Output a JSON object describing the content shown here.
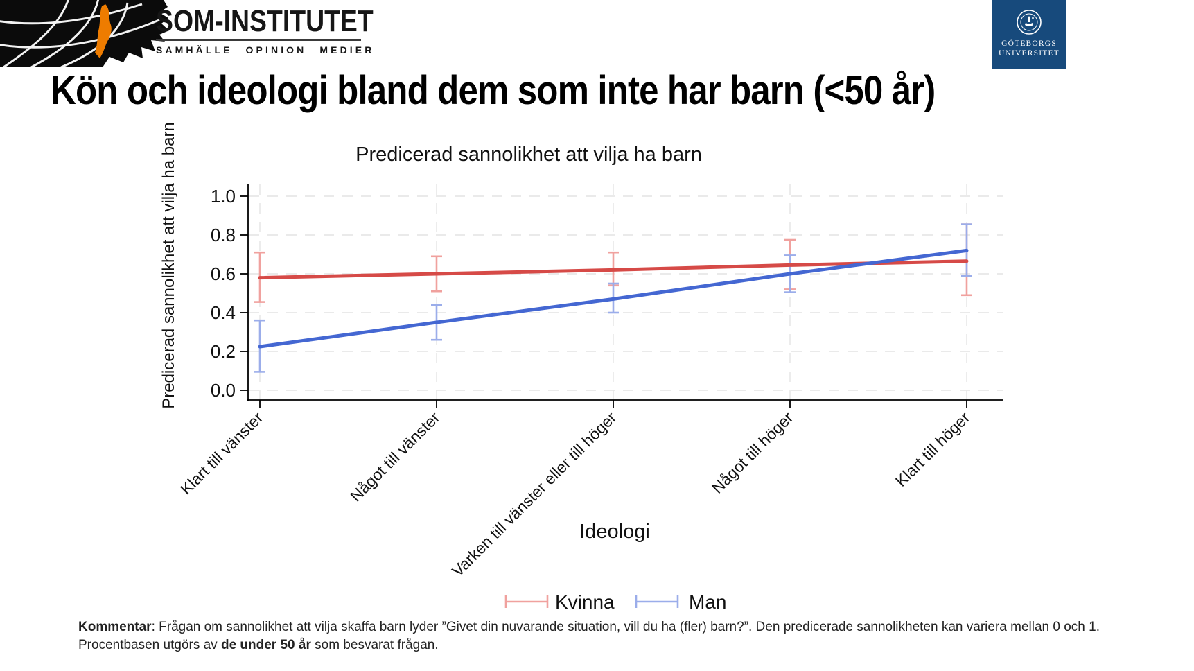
{
  "header": {
    "som_logo": {
      "title": "SOM-INSTITUTET",
      "subtitle": "SAMHÄLLE OPINION MEDIER"
    },
    "gu_logo": {
      "line1": "GÖTEBORGS",
      "line2": "UNIVERSITET",
      "bg_color": "#174a7c"
    }
  },
  "title": "Kön och ideologi bland dem som inte har barn (<50 år)",
  "chart_data": {
    "type": "line",
    "title": "Predicerad sannolikhet att vilja ha barn",
    "xlabel": "Ideologi",
    "ylabel": "Predicerad sannolikhet att vilja ha barn",
    "categories": [
      "Klart till vänster",
      "Något till vänster",
      "Varken till vänster eller till höger",
      "Något till höger",
      "Klart till höger"
    ],
    "x_label_rotation": 45,
    "yticks": [
      0,
      0.2,
      0.4,
      0.6,
      0.8,
      1
    ],
    "ylim": [
      0,
      1.05
    ],
    "grid": "dashed horizontal and vertical gridlines",
    "legend_position": "bottom",
    "series": [
      {
        "name": "Kvinna",
        "color": "#d64a47",
        "ci_color": "#f0a19e",
        "values": [
          0.58,
          0.6,
          0.62,
          0.645,
          0.665
        ],
        "ci_low": [
          0.455,
          0.51,
          0.54,
          0.52,
          0.49
        ],
        "ci_high": [
          0.71,
          0.69,
          0.71,
          0.775,
          0.855
        ]
      },
      {
        "name": "Man",
        "color": "#4467d2",
        "ci_color": "#9badea",
        "values": [
          0.225,
          0.35,
          0.47,
          0.6,
          0.72
        ],
        "ci_low": [
          0.095,
          0.26,
          0.4,
          0.505,
          0.59
        ],
        "ci_high": [
          0.36,
          0.44,
          0.55,
          0.695,
          0.855
        ]
      }
    ]
  },
  "comment": {
    "label": "Kommentar",
    "line1_rest": ": Frågan om sannolikhet att vilja skaffa barn lyder ”Givet din nuvarande situation, vill du ha (fler) barn?”. Den predicerade sannolikheten kan variera mellan 0 och 1.",
    "line2_pre": "Procentbasen utgörs av ",
    "line2_bold": "de under 50 år",
    "line2_post": " som besvarat frågan."
  }
}
